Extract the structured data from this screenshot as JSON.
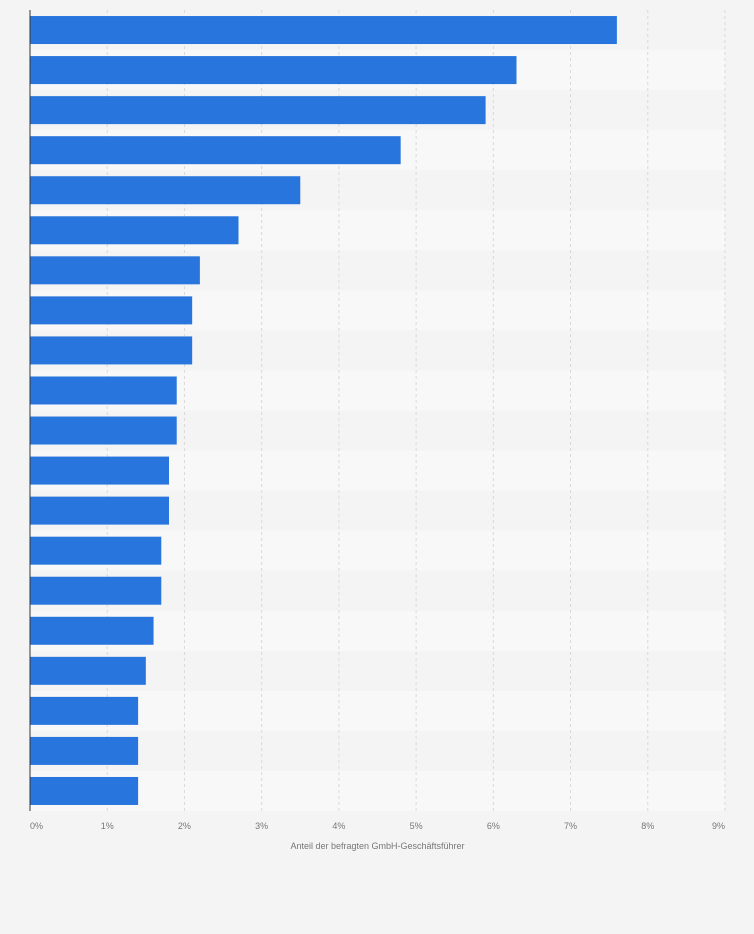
{
  "chart_data": {
    "type": "bar",
    "orientation": "horizontal",
    "categories": [
      "",
      "",
      "",
      "",
      "",
      "",
      "",
      "",
      "",
      "",
      "",
      "",
      "",
      "",
      "",
      "",
      "",
      "",
      "",
      ""
    ],
    "values": [
      7.6,
      6.3,
      5.9,
      4.8,
      3.5,
      2.7,
      2.2,
      2.1,
      2.1,
      1.9,
      1.9,
      1.8,
      1.8,
      1.7,
      1.7,
      1.6,
      1.5,
      1.4,
      1.4,
      1.4
    ],
    "xlabel": "Anteil der befragten GmbH-Geschäftsführer",
    "xlim": [
      0,
      9
    ],
    "ticks": [
      0,
      1,
      2,
      3,
      4,
      5,
      6,
      7,
      8,
      9
    ],
    "tick_labels": [
      "0%",
      "1%",
      "2%",
      "3%",
      "4%",
      "5%",
      "6%",
      "7%",
      "8%",
      "9%"
    ],
    "grid": true,
    "bar_color": "#2876dd",
    "band_colors": [
      "#f4f4f4",
      "#f8f8f8"
    ],
    "grid_color": "#d9d9d9",
    "axis_color": "#333333",
    "text_color": "#777777"
  }
}
